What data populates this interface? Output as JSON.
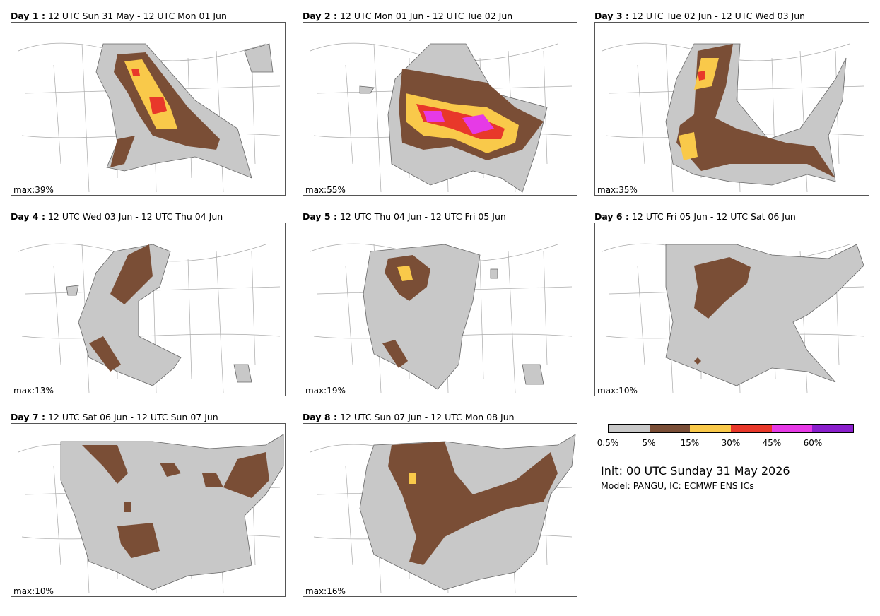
{
  "panels": [
    {
      "day": "Day 1 :",
      "range": "12 UTC Sun 31 May - 12 UTC Mon 01 Jun",
      "max": "max:39%"
    },
    {
      "day": "Day 2 :",
      "range": "12 UTC Mon 01 Jun - 12 UTC Tue 02 Jun",
      "max": "max:55%"
    },
    {
      "day": "Day 3 :",
      "range": "12 UTC Tue 02 Jun - 12 UTC Wed 03 Jun",
      "max": "max:35%"
    },
    {
      "day": "Day 4 :",
      "range": "12 UTC Wed 03 Jun - 12 UTC Thu 04 Jun",
      "max": "max:13%"
    },
    {
      "day": "Day 5 :",
      "range": "12 UTC Thu 04 Jun - 12 UTC Fri 05 Jun",
      "max": "max:19%"
    },
    {
      "day": "Day 6 :",
      "range": "12 UTC Fri 05 Jun - 12 UTC Sat 06 Jun",
      "max": "max:10%"
    },
    {
      "day": "Day 7 :",
      "range": "12 UTC Sat 06 Jun - 12 UTC Sun 07 Jun",
      "max": "max:10%"
    },
    {
      "day": "Day 8 :",
      "range": "12 UTC Sun 07 Jun - 12 UTC Mon 08 Jun",
      "max": "max:16%"
    }
  ],
  "legend": {
    "colors": [
      "#c8c8c8",
      "#7a4e36",
      "#f9c94a",
      "#e8382a",
      "#e63ae6",
      "#8a1fcc"
    ],
    "ticks": [
      "0.5%",
      "5%",
      "15%",
      "30%",
      "45%",
      "60%"
    ]
  },
  "init": "Init: 00 UTC Sunday 31 May 2026",
  "model": "Model: PANGU, IC: ECMWF ENS ICs"
}
